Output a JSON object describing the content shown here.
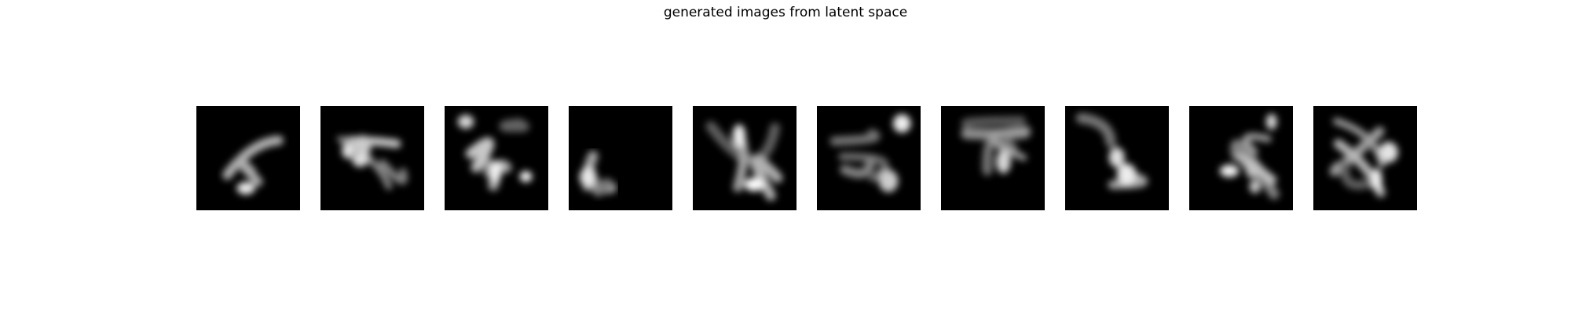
{
  "title": "generated images from latent space"
}
